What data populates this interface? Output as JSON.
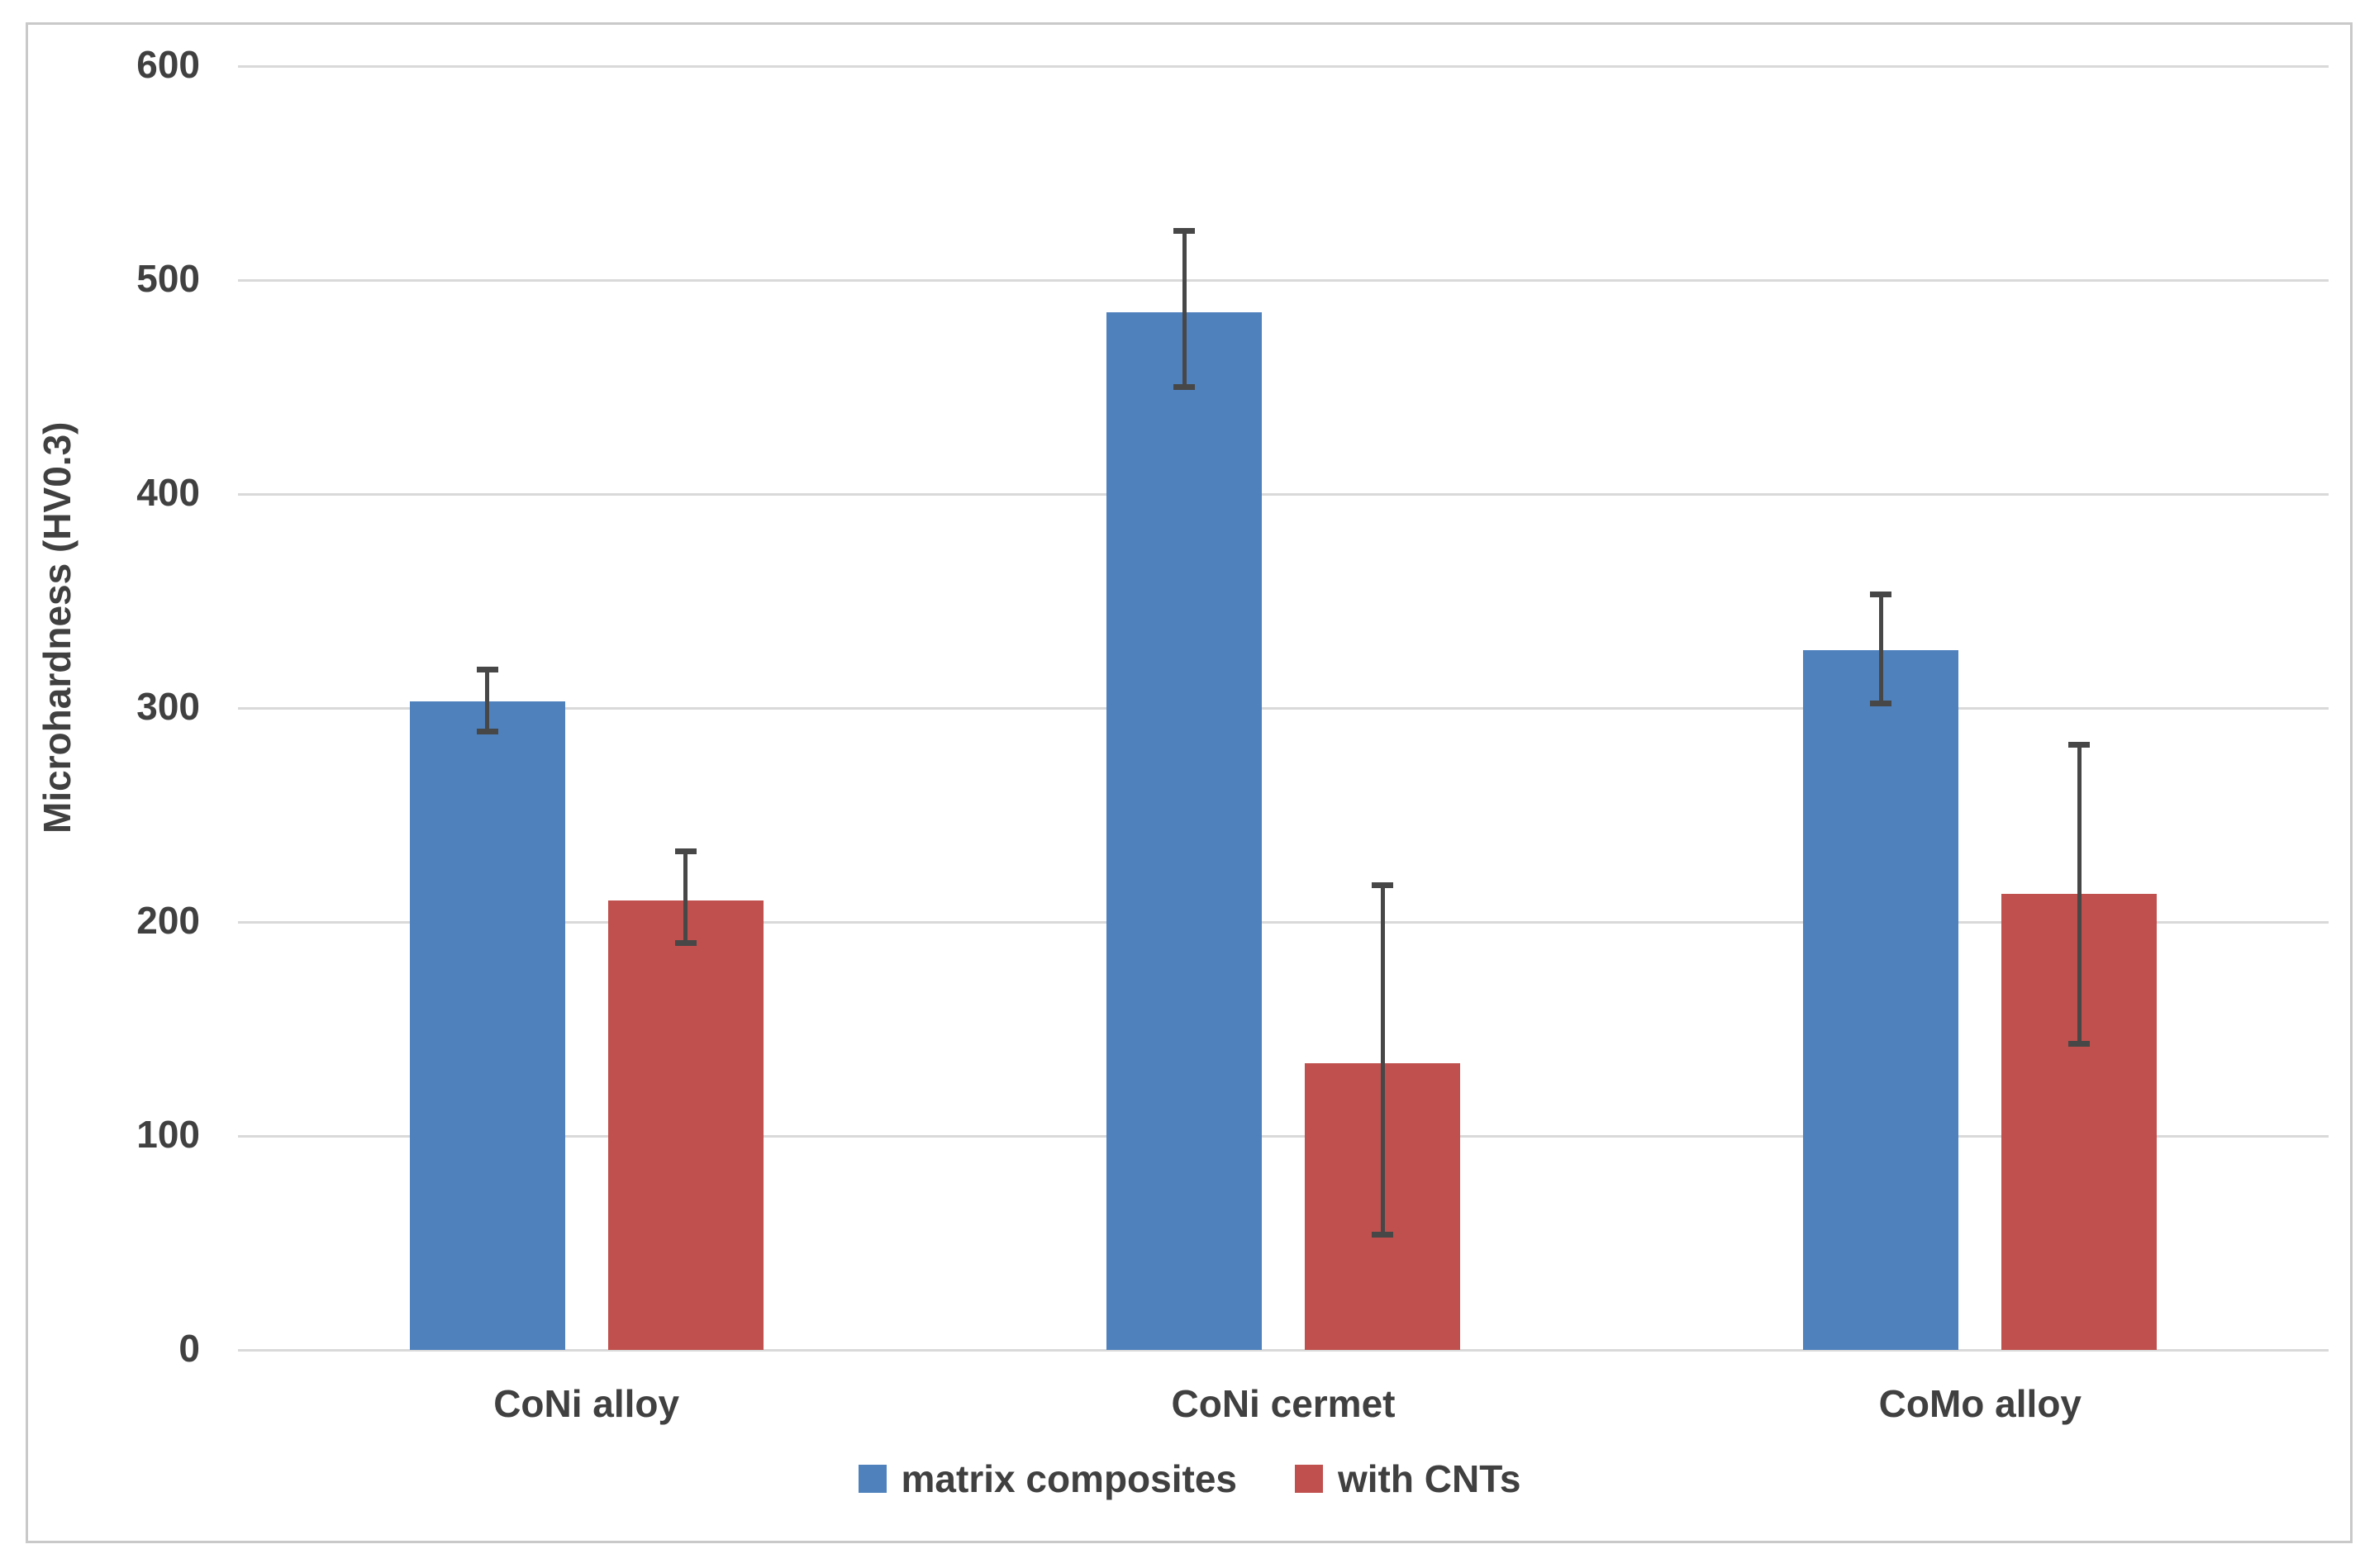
{
  "chart_data": {
    "type": "bar",
    "title": "",
    "categories": [
      "CoNi alloy",
      "CoNi cermet",
      "CoMo alloy"
    ],
    "series": [
      {
        "name": "matrix composites",
        "color": "#4F81BD",
        "values": [
          303,
          485,
          327
        ],
        "error_plus": [
          15,
          38,
          26
        ],
        "error_minus": [
          14,
          35,
          25
        ]
      },
      {
        "name": "with CNTs",
        "color": "#C0504D",
        "values": [
          210,
          134,
          213
        ],
        "error_plus": [
          23,
          83,
          70
        ],
        "error_minus": [
          20,
          80,
          70
        ]
      }
    ],
    "xlabel": "",
    "ylabel": "Microhardness (HV0.3)",
    "ylim": [
      0,
      600
    ],
    "yticks": [
      0,
      100,
      200,
      300,
      400,
      500,
      600
    ],
    "grid": "horizontal",
    "legend_position": "bottom",
    "error_bars": true,
    "style": {
      "gridline_color": "#D9D9D9",
      "text_color": "#404040",
      "error_bar_color": "#474747",
      "frame_border_color": "#C9C9C9",
      "background_color": "#FFFFFF"
    }
  }
}
